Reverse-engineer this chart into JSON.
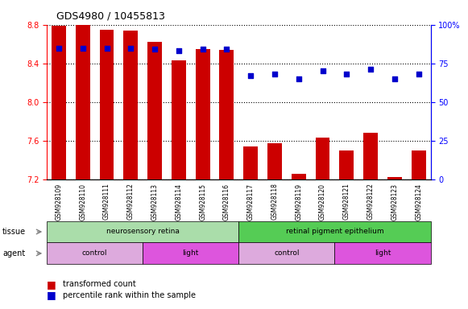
{
  "title": "GDS4980 / 10455813",
  "samples": [
    "GSM928109",
    "GSM928110",
    "GSM928111",
    "GSM928112",
    "GSM928113",
    "GSM928114",
    "GSM928115",
    "GSM928116",
    "GSM928117",
    "GSM928118",
    "GSM928119",
    "GSM928120",
    "GSM928121",
    "GSM928122",
    "GSM928123",
    "GSM928124"
  ],
  "bar_values": [
    8.79,
    8.8,
    8.75,
    8.74,
    8.62,
    8.43,
    8.55,
    8.54,
    7.54,
    7.57,
    7.26,
    7.63,
    7.5,
    7.68,
    7.22,
    7.5
  ],
  "percentile_values": [
    85,
    85,
    85,
    85,
    84,
    83,
    84,
    84,
    67,
    68,
    65,
    70,
    68,
    71,
    65,
    68
  ],
  "ymin": 7.2,
  "ymax": 8.8,
  "yticks": [
    7.2,
    7.6,
    8.0,
    8.4,
    8.8
  ],
  "y2min": 0,
  "y2max": 100,
  "y2ticks": [
    0,
    25,
    50,
    75,
    100
  ],
  "bar_color": "#cc0000",
  "dot_color": "#0000cc",
  "tissue_groups": [
    {
      "label": "neurosensory retina",
      "start": 0,
      "end": 8,
      "color": "#aaddaa"
    },
    {
      "label": "retinal pigment epithelium",
      "start": 8,
      "end": 16,
      "color": "#55cc55"
    }
  ],
  "agent_groups": [
    {
      "label": "control",
      "start": 0,
      "end": 4,
      "color": "#ddaadd"
    },
    {
      "label": "light",
      "start": 4,
      "end": 8,
      "color": "#dd55dd"
    },
    {
      "label": "control",
      "start": 8,
      "end": 12,
      "color": "#ddaadd"
    },
    {
      "label": "light",
      "start": 12,
      "end": 16,
      "color": "#dd55dd"
    }
  ],
  "legend_bar_label": "transformed count",
  "legend_dot_label": "percentile rank within the sample",
  "tissue_label": "tissue",
  "agent_label": "agent"
}
